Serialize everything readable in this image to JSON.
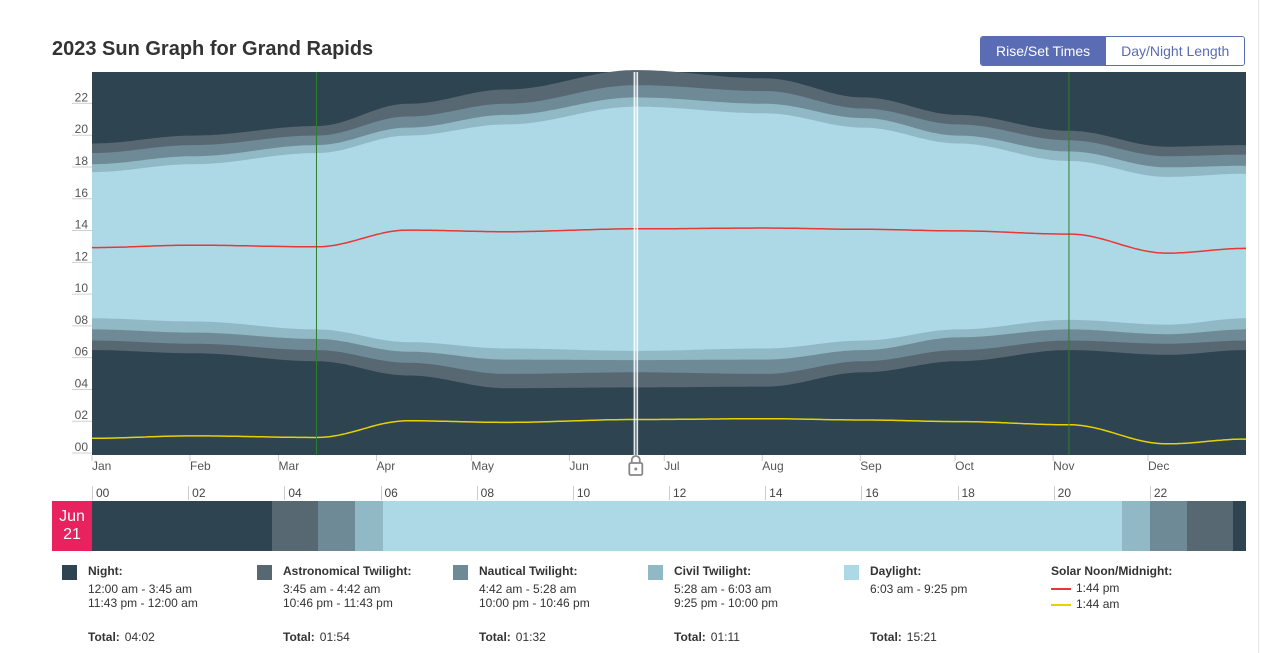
{
  "page": {
    "title": "2023 Sun Graph for Grand Rapids"
  },
  "toggle": {
    "active_label": "Rise/Set Times",
    "inactive_label": "Day/Night Length"
  },
  "colors": {
    "night": "#2e4450",
    "astronomical": "#586873",
    "nautical": "#6e8a96",
    "civil": "#90b8c5",
    "daylight": "#add8e6",
    "noon": "#e53935",
    "midnight": "#e6d200",
    "dst_line": "#2e7d32",
    "accent": "#5a6cb3",
    "date_badge": "#e8215f"
  },
  "chart_data": {
    "type": "area",
    "title": "2023 Sun Graph for Grand Rapids",
    "ylim": [
      0,
      24
    ],
    "y_ticks": [
      "00",
      "02",
      "04",
      "06",
      "08",
      "10",
      "12",
      "14",
      "16",
      "18",
      "20",
      "22"
    ],
    "month_labels": [
      "Jan",
      "Feb",
      "Mar",
      "Apr",
      "May",
      "Jun",
      "Jul",
      "Aug",
      "Sep",
      "Oct",
      "Nov",
      "Dec"
    ],
    "dst_transitions_day": [
      71,
      309
    ],
    "selected_day": 172,
    "selected_marker_icon": "lock-icon",
    "bands_hours_by_day": {
      "day": [
        0,
        32,
        71,
        100,
        131,
        172,
        213,
        244,
        274,
        309,
        340,
        365
      ],
      "astronomical_start": [
        6.1,
        5.9,
        5.4,
        4.5,
        3.7,
        3.75,
        3.8,
        4.7,
        5.4,
        6.1,
        5.8,
        6.1
      ],
      "nautical_start": [
        6.7,
        6.5,
        6.1,
        5.3,
        4.6,
        4.7,
        4.6,
        5.4,
        6.1,
        6.7,
        6.5,
        6.7
      ],
      "civil_start": [
        7.4,
        7.2,
        6.8,
        6.0,
        5.5,
        5.47,
        5.5,
        6.1,
        6.9,
        7.4,
        7.1,
        7.4
      ],
      "sunrise": [
        8.1,
        7.9,
        7.4,
        6.6,
        6.2,
        6.05,
        6.2,
        6.7,
        7.4,
        8.0,
        7.7,
        8.1
      ],
      "sunset": [
        17.3,
        17.8,
        18.5,
        19.6,
        20.3,
        21.42,
        21.0,
        20.1,
        19.1,
        18.0,
        17.0,
        17.2
      ],
      "civil_end": [
        17.8,
        18.3,
        19.0,
        20.1,
        20.9,
        22.0,
        21.6,
        20.7,
        19.6,
        18.6,
        17.6,
        17.7
      ],
      "nautical_end": [
        18.5,
        19.0,
        19.6,
        20.8,
        21.6,
        22.77,
        22.4,
        21.3,
        20.3,
        19.3,
        18.3,
        18.4
      ],
      "astronomical_end": [
        19.1,
        19.6,
        20.2,
        21.6,
        22.5,
        23.72,
        23.2,
        22.0,
        20.9,
        19.9,
        18.9,
        19.0
      ],
      "solar_noon": [
        12.55,
        12.7,
        12.6,
        13.65,
        13.55,
        13.73,
        13.78,
        13.7,
        13.6,
        13.4,
        12.2,
        12.5
      ],
      "solar_midnight": [
        0.55,
        0.7,
        0.6,
        1.65,
        1.55,
        1.73,
        1.78,
        1.7,
        1.6,
        1.4,
        0.2,
        0.5
      ]
    },
    "legend": [
      {
        "name": "Night",
        "color": "#2e4450"
      },
      {
        "name": "Astronomical Twilight",
        "color": "#586873"
      },
      {
        "name": "Nautical Twilight",
        "color": "#6e8a96"
      },
      {
        "name": "Civil Twilight",
        "color": "#90b8c5"
      },
      {
        "name": "Daylight",
        "color": "#add8e6"
      },
      {
        "name": "Solar Noon/Midnight",
        "color": "#e53935"
      }
    ]
  },
  "day_bar": {
    "month": "Jun",
    "day": "21",
    "hour_labels": [
      "00",
      "02",
      "04",
      "06",
      "08",
      "10",
      "12",
      "14",
      "16",
      "18",
      "20",
      "22"
    ],
    "segments_hours": [
      {
        "kind": "night",
        "start": 0,
        "end": 3.75
      },
      {
        "kind": "astronomical",
        "start": 3.75,
        "end": 4.7
      },
      {
        "kind": "nautical",
        "start": 4.7,
        "end": 5.47
      },
      {
        "kind": "civil",
        "start": 5.47,
        "end": 6.05
      },
      {
        "kind": "daylight",
        "start": 6.05,
        "end": 21.42
      },
      {
        "kind": "civil",
        "start": 21.42,
        "end": 22.0
      },
      {
        "kind": "nautical",
        "start": 22.0,
        "end": 22.77
      },
      {
        "kind": "astronomical",
        "start": 22.77,
        "end": 23.72
      },
      {
        "kind": "night",
        "start": 23.72,
        "end": 24
      }
    ]
  },
  "legend_details": {
    "night": {
      "title": "Night:",
      "line1": "12:00 am - 3:45 am",
      "line2": "11:43 pm - 12:00 am",
      "total_label": "Total:",
      "total": "04:02"
    },
    "astronomical": {
      "title": "Astronomical Twilight:",
      "line1": "3:45 am - 4:42 am",
      "line2": "10:46 pm - 11:43 pm",
      "total_label": "Total:",
      "total": "01:54"
    },
    "nautical": {
      "title": "Nautical Twilight:",
      "line1": "4:42 am - 5:28 am",
      "line2": "10:00 pm - 10:46 pm",
      "total_label": "Total:",
      "total": "01:32"
    },
    "civil": {
      "title": "Civil Twilight:",
      "line1": "5:28 am - 6:03 am",
      "line2": "9:25 pm - 10:00 pm",
      "total_label": "Total:",
      "total": "01:11"
    },
    "daylight": {
      "title": "Daylight:",
      "line1": "6:03 am - 9:25 pm",
      "total_label": "Total:",
      "total": "15:21"
    },
    "noon": {
      "title": "Solar Noon/Midnight:",
      "noon_time": "1:44 pm",
      "midnight_time": "1:44 am"
    }
  }
}
